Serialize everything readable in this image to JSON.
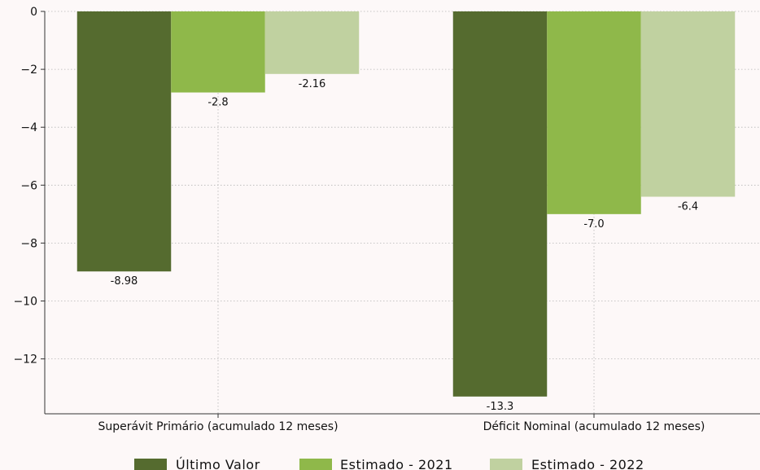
{
  "chart_data": {
    "type": "bar",
    "title": "",
    "xlabel": "",
    "ylabel": "",
    "categories": [
      "Superávit Primário (acumulado 12 meses)",
      "Déficit Nominal (acumulado 12 meses)"
    ],
    "series": [
      {
        "name": "Último Valor",
        "values": [
          -8.98,
          -13.3
        ],
        "color": "#556b2f"
      },
      {
        "name": "Estimado - 2021",
        "values": [
          -2.8,
          -7.0
        ],
        "color": "#8fb84a"
      },
      {
        "name": "Estimado - 2022",
        "values": [
          -2.16,
          -6.4
        ],
        "color": "#c0d1a0"
      }
    ],
    "data_labels": [
      [
        "-8.98",
        "-13.3"
      ],
      [
        "-2.8",
        "-7.0"
      ],
      [
        "-2.16",
        "-6.4"
      ]
    ],
    "y_ticks": [
      0,
      -2,
      -4,
      -6,
      -8,
      -10,
      -12
    ],
    "y_tick_labels": [
      "0",
      "−2",
      "−4",
      "−6",
      "−8",
      "−10",
      "−12"
    ],
    "ylim": [
      -13.9,
      0
    ],
    "grid": true,
    "legend_position": "bottom"
  }
}
